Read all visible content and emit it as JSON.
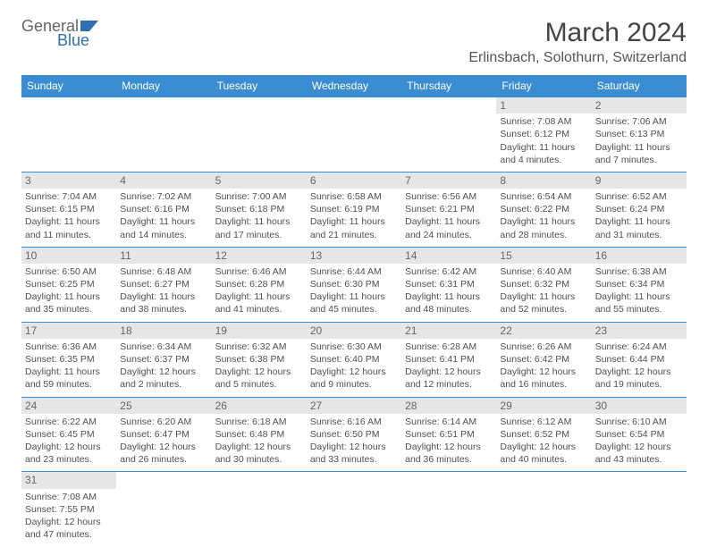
{
  "logo": {
    "text_top": "General",
    "text_bottom": "Blue",
    "icon_color": "#2f6fb3"
  },
  "header": {
    "title": "March 2024",
    "location": "Erlinsbach, Solothurn, Switzerland"
  },
  "colors": {
    "header_bg": "#3a8dd0",
    "header_fg": "#ffffff",
    "daynum_bg": "#e6e6e6",
    "cell_border": "#3a8dd0",
    "text": "#505050"
  },
  "weekdays": [
    "Sunday",
    "Monday",
    "Tuesday",
    "Wednesday",
    "Thursday",
    "Friday",
    "Saturday"
  ],
  "weeks": [
    [
      null,
      null,
      null,
      null,
      null,
      {
        "n": "1",
        "sunrise": "Sunrise: 7:08 AM",
        "sunset": "Sunset: 6:12 PM",
        "day1": "Daylight: 11 hours",
        "day2": "and 4 minutes."
      },
      {
        "n": "2",
        "sunrise": "Sunrise: 7:06 AM",
        "sunset": "Sunset: 6:13 PM",
        "day1": "Daylight: 11 hours",
        "day2": "and 7 minutes."
      }
    ],
    [
      {
        "n": "3",
        "sunrise": "Sunrise: 7:04 AM",
        "sunset": "Sunset: 6:15 PM",
        "day1": "Daylight: 11 hours",
        "day2": "and 11 minutes."
      },
      {
        "n": "4",
        "sunrise": "Sunrise: 7:02 AM",
        "sunset": "Sunset: 6:16 PM",
        "day1": "Daylight: 11 hours",
        "day2": "and 14 minutes."
      },
      {
        "n": "5",
        "sunrise": "Sunrise: 7:00 AM",
        "sunset": "Sunset: 6:18 PM",
        "day1": "Daylight: 11 hours",
        "day2": "and 17 minutes."
      },
      {
        "n": "6",
        "sunrise": "Sunrise: 6:58 AM",
        "sunset": "Sunset: 6:19 PM",
        "day1": "Daylight: 11 hours",
        "day2": "and 21 minutes."
      },
      {
        "n": "7",
        "sunrise": "Sunrise: 6:56 AM",
        "sunset": "Sunset: 6:21 PM",
        "day1": "Daylight: 11 hours",
        "day2": "and 24 minutes."
      },
      {
        "n": "8",
        "sunrise": "Sunrise: 6:54 AM",
        "sunset": "Sunset: 6:22 PM",
        "day1": "Daylight: 11 hours",
        "day2": "and 28 minutes."
      },
      {
        "n": "9",
        "sunrise": "Sunrise: 6:52 AM",
        "sunset": "Sunset: 6:24 PM",
        "day1": "Daylight: 11 hours",
        "day2": "and 31 minutes."
      }
    ],
    [
      {
        "n": "10",
        "sunrise": "Sunrise: 6:50 AM",
        "sunset": "Sunset: 6:25 PM",
        "day1": "Daylight: 11 hours",
        "day2": "and 35 minutes."
      },
      {
        "n": "11",
        "sunrise": "Sunrise: 6:48 AM",
        "sunset": "Sunset: 6:27 PM",
        "day1": "Daylight: 11 hours",
        "day2": "and 38 minutes."
      },
      {
        "n": "12",
        "sunrise": "Sunrise: 6:46 AM",
        "sunset": "Sunset: 6:28 PM",
        "day1": "Daylight: 11 hours",
        "day2": "and 41 minutes."
      },
      {
        "n": "13",
        "sunrise": "Sunrise: 6:44 AM",
        "sunset": "Sunset: 6:30 PM",
        "day1": "Daylight: 11 hours",
        "day2": "and 45 minutes."
      },
      {
        "n": "14",
        "sunrise": "Sunrise: 6:42 AM",
        "sunset": "Sunset: 6:31 PM",
        "day1": "Daylight: 11 hours",
        "day2": "and 48 minutes."
      },
      {
        "n": "15",
        "sunrise": "Sunrise: 6:40 AM",
        "sunset": "Sunset: 6:32 PM",
        "day1": "Daylight: 11 hours",
        "day2": "and 52 minutes."
      },
      {
        "n": "16",
        "sunrise": "Sunrise: 6:38 AM",
        "sunset": "Sunset: 6:34 PM",
        "day1": "Daylight: 11 hours",
        "day2": "and 55 minutes."
      }
    ],
    [
      {
        "n": "17",
        "sunrise": "Sunrise: 6:36 AM",
        "sunset": "Sunset: 6:35 PM",
        "day1": "Daylight: 11 hours",
        "day2": "and 59 minutes."
      },
      {
        "n": "18",
        "sunrise": "Sunrise: 6:34 AM",
        "sunset": "Sunset: 6:37 PM",
        "day1": "Daylight: 12 hours",
        "day2": "and 2 minutes."
      },
      {
        "n": "19",
        "sunrise": "Sunrise: 6:32 AM",
        "sunset": "Sunset: 6:38 PM",
        "day1": "Daylight: 12 hours",
        "day2": "and 5 minutes."
      },
      {
        "n": "20",
        "sunrise": "Sunrise: 6:30 AM",
        "sunset": "Sunset: 6:40 PM",
        "day1": "Daylight: 12 hours",
        "day2": "and 9 minutes."
      },
      {
        "n": "21",
        "sunrise": "Sunrise: 6:28 AM",
        "sunset": "Sunset: 6:41 PM",
        "day1": "Daylight: 12 hours",
        "day2": "and 12 minutes."
      },
      {
        "n": "22",
        "sunrise": "Sunrise: 6:26 AM",
        "sunset": "Sunset: 6:42 PM",
        "day1": "Daylight: 12 hours",
        "day2": "and 16 minutes."
      },
      {
        "n": "23",
        "sunrise": "Sunrise: 6:24 AM",
        "sunset": "Sunset: 6:44 PM",
        "day1": "Daylight: 12 hours",
        "day2": "and 19 minutes."
      }
    ],
    [
      {
        "n": "24",
        "sunrise": "Sunrise: 6:22 AM",
        "sunset": "Sunset: 6:45 PM",
        "day1": "Daylight: 12 hours",
        "day2": "and 23 minutes."
      },
      {
        "n": "25",
        "sunrise": "Sunrise: 6:20 AM",
        "sunset": "Sunset: 6:47 PM",
        "day1": "Daylight: 12 hours",
        "day2": "and 26 minutes."
      },
      {
        "n": "26",
        "sunrise": "Sunrise: 6:18 AM",
        "sunset": "Sunset: 6:48 PM",
        "day1": "Daylight: 12 hours",
        "day2": "and 30 minutes."
      },
      {
        "n": "27",
        "sunrise": "Sunrise: 6:16 AM",
        "sunset": "Sunset: 6:50 PM",
        "day1": "Daylight: 12 hours",
        "day2": "and 33 minutes."
      },
      {
        "n": "28",
        "sunrise": "Sunrise: 6:14 AM",
        "sunset": "Sunset: 6:51 PM",
        "day1": "Daylight: 12 hours",
        "day2": "and 36 minutes."
      },
      {
        "n": "29",
        "sunrise": "Sunrise: 6:12 AM",
        "sunset": "Sunset: 6:52 PM",
        "day1": "Daylight: 12 hours",
        "day2": "and 40 minutes."
      },
      {
        "n": "30",
        "sunrise": "Sunrise: 6:10 AM",
        "sunset": "Sunset: 6:54 PM",
        "day1": "Daylight: 12 hours",
        "day2": "and 43 minutes."
      }
    ],
    [
      {
        "n": "31",
        "sunrise": "Sunrise: 7:08 AM",
        "sunset": "Sunset: 7:55 PM",
        "day1": "Daylight: 12 hours",
        "day2": "and 47 minutes."
      },
      null,
      null,
      null,
      null,
      null,
      null
    ]
  ]
}
